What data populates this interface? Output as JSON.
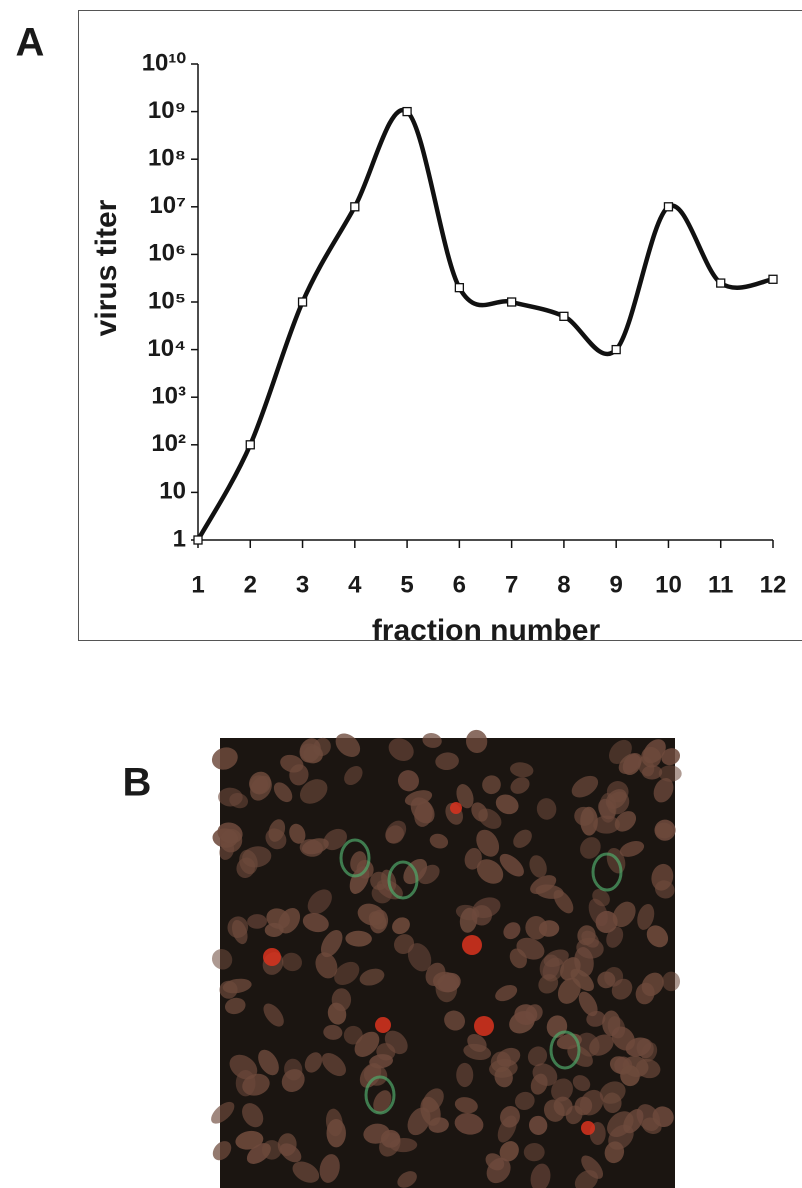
{
  "panel_labels": [
    "A",
    "B"
  ],
  "chart_data": {
    "type": "line",
    "x_label": "fraction number",
    "y_label": "virus titer",
    "x": [
      1,
      2,
      3,
      4,
      5,
      6,
      7,
      8,
      9,
      10,
      11,
      12
    ],
    "series": [
      {
        "name": "virus titer",
        "color": "#111111",
        "values": [
          1,
          100,
          100000,
          10000000,
          1000000000,
          200000,
          100000,
          50000,
          10000,
          10000000,
          250000,
          300000
        ]
      }
    ],
    "xlim": [
      1,
      12
    ],
    "xticks": [
      1,
      2,
      3,
      4,
      5,
      6,
      7,
      8,
      9,
      10,
      11,
      12
    ],
    "ylim": [
      1,
      10000000000
    ],
    "y_scale": "log",
    "yticks": [
      1,
      10,
      {
        "value": 100,
        "label": "10²"
      },
      {
        "value": 1000,
        "label": "10³"
      },
      {
        "value": 10000,
        "label": "10⁴"
      },
      {
        "value": 100000,
        "label": "10⁵"
      },
      {
        "value": 1000000,
        "label": "10⁶"
      },
      {
        "value": 10000000,
        "label": "10⁷"
      },
      {
        "value": 100000000,
        "label": "10⁸"
      },
      {
        "value": 1000000000,
        "label": "10⁹"
      },
      {
        "value": 10000000000,
        "label": "10¹⁰"
      }
    ],
    "grid": false,
    "markers": true
  }
}
